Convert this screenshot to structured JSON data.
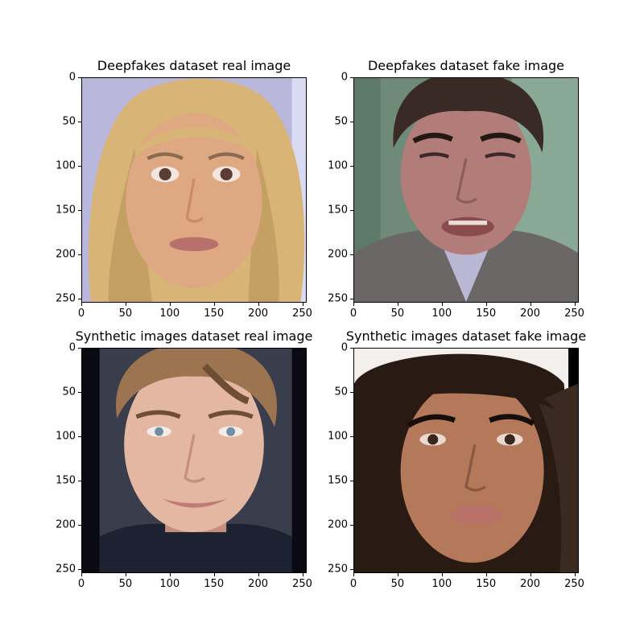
{
  "panels": [
    {
      "title": "Deepfakes dataset real image",
      "picture": "blonde-woman-face-photo",
      "colors": {
        "bg": "#b9b7dc",
        "hair": "#d8b476",
        "hairShade": "#b8935a",
        "skin": "#dea882",
        "skinShade": "#c98b68",
        "lips": "#b8706a",
        "eye": "#5a3e34"
      }
    },
    {
      "title": "Deepfakes dataset fake image",
      "picture": "man-face-in-suit-photo",
      "colors": {
        "bg": "#6f8a78",
        "hair": "#3a2a26",
        "hairShade": "#241815",
        "skin": "#b27c78",
        "skinShade": "#8e5d5a",
        "lips": "#8a4a4e",
        "eye": "#3a2a2a",
        "suit": "#6b6766",
        "shirt": "#b9b7d4"
      }
    },
    {
      "title": "Synthetic images dataset real image",
      "picture": "young-man-smiling-face-photo",
      "colors": {
        "bg": "#0a0a12",
        "hair": "#9c7450",
        "hairShade": "#6e4f36",
        "skin": "#e3b7a1",
        "skinShade": "#c58f7b",
        "lips": "#c27a78",
        "eye": "#6e8fa6",
        "shirt": "#1d2233"
      }
    },
    {
      "title": "Synthetic images dataset fake image",
      "picture": "dark-haired-woman-face-photo",
      "colors": {
        "bg": "#f2efec",
        "hair": "#2a1a14",
        "hairShade": "#160e0a",
        "skin": "#b4785a",
        "skinShade": "#8a5840",
        "lips": "#b9716a",
        "eye": "#3a261c"
      }
    }
  ],
  "axis": {
    "xticks": [
      "0",
      "50",
      "100",
      "150",
      "200",
      "250"
    ],
    "yticks": [
      "0",
      "50",
      "100",
      "150",
      "200",
      "250"
    ],
    "xlim": [
      0,
      255
    ],
    "ylim": [
      0,
      255
    ]
  }
}
